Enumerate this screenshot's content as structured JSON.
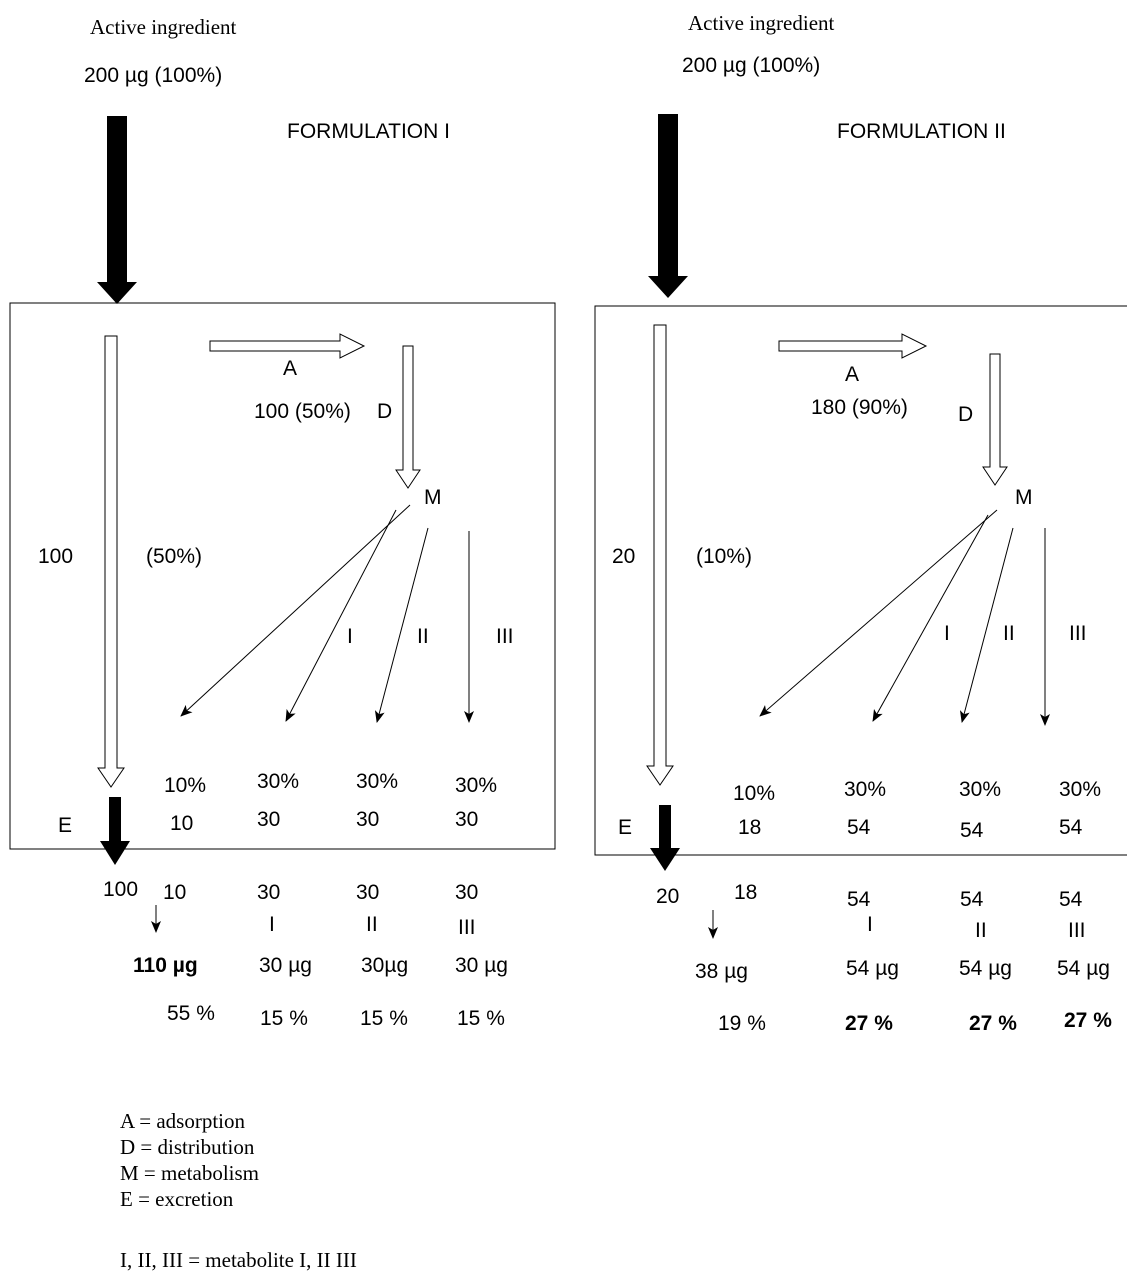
{
  "formulations": [
    {
      "active_label": "Active ingredient",
      "dose": "200 µg (100%)",
      "title": "FORMULATION I",
      "a_label": "A",
      "a_value": "100 (50%)",
      "d_label": "D",
      "m_label": "M",
      "direct_amount": "100",
      "direct_pct": "(50%)",
      "met_labels": [
        "I",
        "II",
        "III"
      ],
      "box_pct": [
        "10%",
        "30%",
        "30%",
        "30%"
      ],
      "box_amt": [
        "10",
        "30",
        "30",
        "30"
      ],
      "e_label": "E",
      "out_direct": "100",
      "out_amt": [
        "10",
        "30",
        "30",
        "30"
      ],
      "out_met": [
        "I",
        "II",
        "III"
      ],
      "totals": [
        "110  µg",
        "30 µg",
        "30µg",
        "30 µg"
      ],
      "total_pct": [
        "55 %",
        "15 %",
        "15 %",
        "15 %"
      ]
    },
    {
      "active_label": "Active ingredient",
      "dose": "200 µg (100%)",
      "title": "FORMULATION II",
      "a_label": "A",
      "a_value": "180 (90%)",
      "d_label": "D",
      "m_label": "M",
      "direct_amount": "20",
      "direct_pct": "(10%)",
      "met_labels": [
        "I",
        "II",
        "III"
      ],
      "box_pct": [
        "10%",
        "30%",
        "30%",
        "30%"
      ],
      "box_amt": [
        "18",
        "54",
        "54",
        "54"
      ],
      "e_label": "E",
      "out_direct": "20",
      "out_amt": [
        "18",
        "54",
        "54",
        "54"
      ],
      "out_met": [
        "I",
        "II",
        "III"
      ],
      "totals": [
        "38  µg",
        "54  µg",
        "54 µg",
        "54 µg"
      ],
      "total_pct": [
        "19  %",
        "27 %",
        "27 %",
        "27 %"
      ]
    }
  ],
  "legend": [
    "A = adsorption",
    "D = distribution",
    "M = metabolism",
    "E = excretion"
  ],
  "metabolite_note": "I, II, III = metabolite I, II III"
}
